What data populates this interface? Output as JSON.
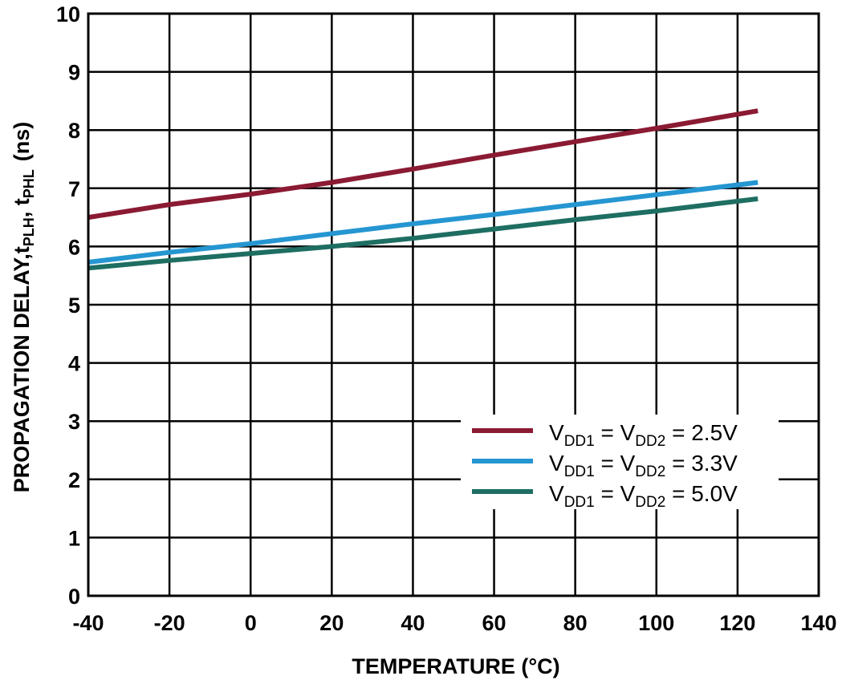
{
  "chart_data": {
    "type": "line",
    "title": "",
    "xlabel": "TEMPERATURE (°C)",
    "ylabel": {
      "prefix": "PROPAGATION DELAY,",
      "sym1": "t",
      "sub1": "PLH",
      "sep": ", ",
      "sym2": "t",
      "sub2": "PHL",
      "unit": "(ns)"
    },
    "xlim": [
      -40,
      140
    ],
    "ylim": [
      0,
      10
    ],
    "xticks": [
      "-40",
      "-20",
      "0",
      "20",
      "40",
      "60",
      "80",
      "100",
      "120",
      "140"
    ],
    "yticks": [
      "0",
      "1",
      "2",
      "3",
      "4",
      "5",
      "6",
      "7",
      "8",
      "9",
      "10"
    ],
    "grid": true,
    "legend_position": "bottom-right",
    "series": [
      {
        "name": "VDD1 = VDD2 = 2.5V",
        "label": {
          "v1": "V",
          "s1": "DD1",
          "eq": " = V",
          "s2": "DD2",
          "val": "= 2.5V"
        },
        "color": "#8b1a33",
        "x": [
          -40,
          -20,
          0,
          20,
          40,
          60,
          80,
          100,
          125
        ],
        "y": [
          6.5,
          6.72,
          6.9,
          7.1,
          7.33,
          7.57,
          7.8,
          8.03,
          8.33
        ]
      },
      {
        "name": "VDD1 = VDD2 = 3.3V",
        "label": {
          "v1": "V",
          "s1": "DD1",
          "eq": " = V",
          "s2": "DD2",
          "val": "= 3.3V"
        },
        "color": "#2596d1",
        "x": [
          -40,
          -20,
          0,
          20,
          40,
          60,
          80,
          100,
          125
        ],
        "y": [
          5.73,
          5.9,
          6.05,
          6.22,
          6.39,
          6.55,
          6.72,
          6.89,
          7.1
        ]
      },
      {
        "name": "VDD1 = VDD2 = 5.0V",
        "label": {
          "v1": "V",
          "s1": "DD1",
          "eq": " = V",
          "s2": "DD2",
          "val": "= 5.0V"
        },
        "color": "#1e6e62",
        "x": [
          -40,
          -20,
          0,
          20,
          40,
          60,
          80,
          100,
          125
        ],
        "y": [
          5.63,
          5.76,
          5.88,
          6.0,
          6.14,
          6.3,
          6.46,
          6.61,
          6.82
        ]
      }
    ]
  }
}
